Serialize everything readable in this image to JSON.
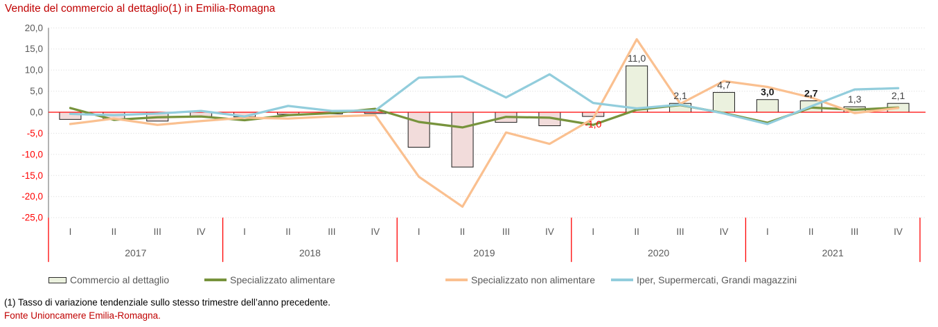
{
  "title": "Vendite del commercio al dettaglio(1) in Emilia-Romagna",
  "footnotes": {
    "note1": "(1) Tasso di variazione tendenziale sullo stesso trimestre dell’anno precedente.",
    "source": "Fonte Unioncamere Emilia-Romagna."
  },
  "legend": {
    "items": [
      {
        "label": "Commercio al dettaglio",
        "marker": "bar-swatch",
        "color": "#EBF1DE"
      },
      {
        "label": "Specializzato alimentare",
        "marker": "line-swatch",
        "color": "#77933C"
      },
      {
        "label": "Specializzato non alimentare",
        "marker": "line-swatch",
        "color": "#FAC090"
      },
      {
        "label": "Iper, Supermercati, Grandi magazzini",
        "marker": "line-swatch",
        "color": "#92CDDC"
      }
    ]
  },
  "colors": {
    "title": "#C00000",
    "source_text": "#C00000",
    "legend_text": "#595959",
    "bar_positive_fill": "#EBF1DE",
    "bar_negative_fill": "#F2DCDB",
    "bar_border": "#1a1a1a",
    "zero_line": "#FF0000",
    "gridline": "#D6D6D6",
    "axis_line": "#808080",
    "tick_positive": "#595959",
    "tick_negative": "#FF0000",
    "year_separator": "#FF0000",
    "value_label": "#404040",
    "value_label_bold": "#1a1a1a",
    "value_label_negative": "#FF0000",
    "x_label": "#595959"
  },
  "chart_data": {
    "type": "bar+line",
    "title": "Vendite del commercio al dettaglio(1) in Emilia-Romagna",
    "xlabel": "",
    "ylabel": "",
    "ylim": [
      -25,
      20
    ],
    "grid": "horizontal-dotted",
    "legend_position": "bottom",
    "yticks": [
      {
        "value": 20,
        "label": "20,0"
      },
      {
        "value": 15,
        "label": "15,0"
      },
      {
        "value": 10,
        "label": "10,0"
      },
      {
        "value": 5,
        "label": "5,0"
      },
      {
        "value": 0,
        "label": "0,0"
      },
      {
        "value": -5,
        "label": "-5,0"
      },
      {
        "value": -10,
        "label": "-10,0"
      },
      {
        "value": -15,
        "label": "-15,0"
      },
      {
        "value": -20,
        "label": "-20,0"
      },
      {
        "value": -25,
        "label": "-25,0"
      }
    ],
    "years": [
      "2017",
      "2018",
      "2019",
      "2020",
      "2021"
    ],
    "quarter_labels": [
      "I",
      "II",
      "III",
      "IV"
    ],
    "series": [
      {
        "name": "Commercio al dettaglio",
        "type": "bar",
        "values": [
          -1.7,
          -1.6,
          -2.1,
          -1.0,
          -1.1,
          -0.5,
          -0.4,
          -0.3,
          -8.3,
          -13.0,
          -2.4,
          -3.2,
          -1.0,
          11.0,
          2.1,
          4.7,
          3.0,
          2.7,
          1.3,
          2.1
        ]
      },
      {
        "name": "Specializzato alimentare",
        "type": "line",
        "color": "#77933C",
        "values": [
          1.0,
          -1.8,
          -1.2,
          -1.0,
          -1.9,
          -0.7,
          -0.2,
          0.8,
          -2.3,
          -3.6,
          -1.1,
          -1.3,
          -3.0,
          0.6,
          1.7,
          -0.2,
          -2.5,
          1.1,
          0.6,
          1.1
        ]
      },
      {
        "name": "Specializzato non alimentare",
        "type": "line",
        "color": "#FAC090",
        "values": [
          -2.8,
          -1.5,
          -3.0,
          -2.1,
          -1.3,
          -1.5,
          -1.0,
          -0.7,
          -15.3,
          -22.4,
          -4.8,
          -7.5,
          -1.5,
          17.3,
          2.0,
          7.4,
          6.0,
          3.5,
          -0.2,
          1.0
        ]
      },
      {
        "name": "Iper, Supermercati, Grandi magazzini",
        "type": "line",
        "color": "#92CDDC",
        "values": [
          -0.4,
          -0.7,
          -0.3,
          0.3,
          -1.0,
          1.5,
          0.3,
          0.4,
          8.2,
          8.5,
          3.5,
          9.0,
          2.2,
          0.9,
          1.8,
          -0.3,
          -2.8,
          1.4,
          5.4,
          5.7
        ]
      }
    ],
    "bar_value_labels": [
      {
        "index": 12,
        "text": "-1,0",
        "negative": true,
        "position": "below"
      },
      {
        "index": 13,
        "text": "11,0"
      },
      {
        "index": 14,
        "text": "2,1"
      },
      {
        "index": 15,
        "text": "4,7"
      },
      {
        "index": 16,
        "text": "3,0",
        "bold": true
      },
      {
        "index": 17,
        "text": "2,7",
        "bold": true
      },
      {
        "index": 18,
        "text": "1,3"
      },
      {
        "index": 19,
        "text": "2,1"
      }
    ]
  }
}
